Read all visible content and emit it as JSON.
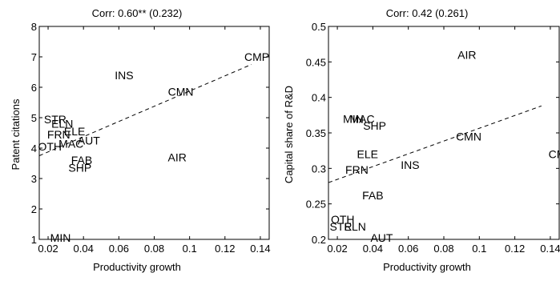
{
  "chart_data": [
    {
      "type": "scatter",
      "title": "Corr: 0.60** (0.232)",
      "xlabel": "Productivity growth",
      "ylabel": "Patent citations",
      "xlim": [
        0.015,
        0.145
      ],
      "ylim": [
        1,
        8
      ],
      "xticks": [
        0.02,
        0.04,
        0.06,
        0.08,
        0.1,
        0.12,
        0.14
      ],
      "yticks": [
        1,
        2,
        3,
        4,
        5,
        6,
        7,
        8
      ],
      "xtick_labels": [
        "0.02",
        "0.04",
        "0.06",
        "0.08",
        "0.1",
        "0.12",
        "0.14"
      ],
      "ytick_labels": [
        "1",
        "2",
        "3",
        "4",
        "5",
        "6",
        "7",
        "8"
      ],
      "grid": false,
      "points": [
        {
          "label": "CMP",
          "x": 0.138,
          "y": 7.0
        },
        {
          "label": "INS",
          "x": 0.063,
          "y": 6.4
        },
        {
          "label": "CMN",
          "x": 0.095,
          "y": 5.85
        },
        {
          "label": "STR",
          "x": 0.024,
          "y": 4.95
        },
        {
          "label": "ELN",
          "x": 0.028,
          "y": 4.8
        },
        {
          "label": "ELE",
          "x": 0.035,
          "y": 4.55
        },
        {
          "label": "FRN",
          "x": 0.026,
          "y": 4.45
        },
        {
          "label": "AUT",
          "x": 0.043,
          "y": 4.25
        },
        {
          "label": "MAC",
          "x": 0.033,
          "y": 4.15
        },
        {
          "label": "OTH",
          "x": 0.021,
          "y": 4.05
        },
        {
          "label": "AIR",
          "x": 0.093,
          "y": 3.7
        },
        {
          "label": "FAB",
          "x": 0.039,
          "y": 3.6
        },
        {
          "label": "SHP",
          "x": 0.038,
          "y": 3.35
        },
        {
          "label": "MIN",
          "x": 0.027,
          "y": 1.05
        }
      ],
      "fit_line": {
        "x": [
          0.015,
          0.135
        ],
        "y": [
          3.75,
          6.75
        ]
      }
    },
    {
      "type": "scatter",
      "title": "Corr: 0.42 (0.261)",
      "xlabel": "Productivity growth",
      "ylabel": "Capital share of R&D",
      "xlim": [
        0.015,
        0.145
      ],
      "ylim": [
        0.2,
        0.5
      ],
      "xticks": [
        0.02,
        0.04,
        0.06,
        0.08,
        0.1,
        0.12,
        0.14
      ],
      "yticks": [
        0.2,
        0.25,
        0.3,
        0.35,
        0.4,
        0.45,
        0.5
      ],
      "xtick_labels": [
        "0.02",
        "0.04",
        "0.06",
        "0.08",
        "0.1",
        "0.12",
        "0.14"
      ],
      "ytick_labels": [
        "0.2",
        "0.25",
        "0.3",
        "0.35",
        "0.4",
        "0.45",
        "0.5"
      ],
      "grid": false,
      "points": [
        {
          "label": "AIR",
          "x": 0.093,
          "y": 0.46
        },
        {
          "label": "MIN",
          "x": 0.029,
          "y": 0.37
        },
        {
          "label": "MAC",
          "x": 0.034,
          "y": 0.37
        },
        {
          "label": "SHP",
          "x": 0.041,
          "y": 0.36
        },
        {
          "label": "CMN",
          "x": 0.094,
          "y": 0.345
        },
        {
          "label": "ELE",
          "x": 0.037,
          "y": 0.32
        },
        {
          "label": "CMP",
          "x": 0.146,
          "y": 0.32
        },
        {
          "label": "INS",
          "x": 0.061,
          "y": 0.305
        },
        {
          "label": "FRN",
          "x": 0.031,
          "y": 0.298
        },
        {
          "label": "FAB",
          "x": 0.04,
          "y": 0.262
        },
        {
          "label": "OTH",
          "x": 0.023,
          "y": 0.228
        },
        {
          "label": "STR",
          "x": 0.022,
          "y": 0.218
        },
        {
          "label": "ELN",
          "x": 0.03,
          "y": 0.218
        },
        {
          "label": "AUT",
          "x": 0.045,
          "y": 0.202
        }
      ],
      "fit_line": {
        "x": [
          0.015,
          0.135
        ],
        "y": [
          0.28,
          0.388
        ]
      }
    }
  ]
}
